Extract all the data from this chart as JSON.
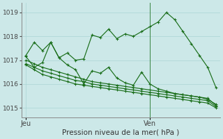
{
  "title": "Pression niveau de la mer( hPa )",
  "background_color": "#cce8e8",
  "grid_color": "#aad4d4",
  "line_color": "#1a6e1a",
  "ylim": [
    1014.6,
    1019.4
  ],
  "yticks": [
    1015,
    1016,
    1017,
    1018,
    1019
  ],
  "n_total": 24,
  "ven_idx": 15,
  "series": [
    [
      1017.2,
      1017.75,
      1017.4,
      1017.75,
      1017.1,
      1017.3,
      1017.0,
      1017.05,
      1018.05,
      1017.95,
      1018.3,
      1017.9,
      1018.1,
      1018.0,
      1018.2,
      1018.4,
      1018.6,
      1019.0,
      1018.7,
      1018.2,
      1017.7,
      1017.2,
      1016.7,
      1015.85
    ],
    [
      1017.0,
      1016.85,
      1016.7,
      1016.6,
      1016.5,
      1016.4,
      1016.3,
      1016.2,
      1016.1,
      1016.05,
      1016.0,
      1015.95,
      1015.9,
      1015.85,
      1015.8,
      1015.75,
      1015.7,
      1015.65,
      1015.6,
      1015.55,
      1015.5,
      1015.45,
      1015.4,
      1015.1
    ],
    [
      1016.85,
      1016.7,
      1016.55,
      1016.45,
      1016.35,
      1016.25,
      1016.15,
      1016.1,
      1016.0,
      1015.95,
      1015.9,
      1015.85,
      1015.8,
      1015.75,
      1015.7,
      1015.65,
      1015.6,
      1015.55,
      1015.5,
      1015.45,
      1015.4,
      1015.35,
      1015.3,
      1015.05
    ],
    [
      1016.8,
      1016.6,
      1016.4,
      1016.3,
      1016.2,
      1016.1,
      1016.0,
      1015.95,
      1015.9,
      1015.85,
      1015.8,
      1015.75,
      1015.7,
      1015.65,
      1015.6,
      1015.55,
      1015.5,
      1015.45,
      1015.4,
      1015.35,
      1015.3,
      1015.25,
      1015.2,
      1015.0
    ],
    [
      1017.15,
      1016.7,
      1016.9,
      1017.75,
      1017.1,
      1016.8,
      1016.6,
      1016.0,
      1016.55,
      1016.45,
      1016.7,
      1016.25,
      1016.05,
      1015.95,
      1016.5,
      1016.0,
      1015.8,
      1015.7,
      1015.6,
      1015.55,
      1015.5,
      1015.45,
      1015.35,
      1015.15
    ]
  ]
}
